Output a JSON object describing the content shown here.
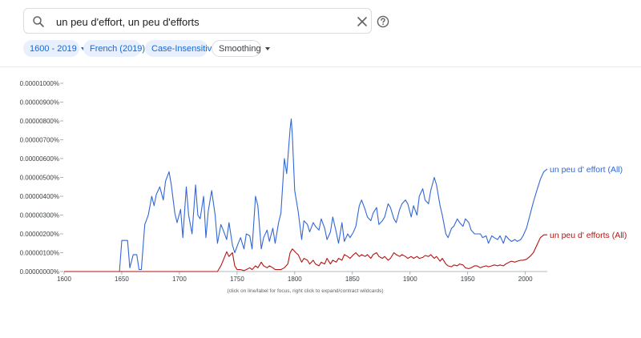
{
  "search": {
    "value": "un peu d'effort, un peu d'efforts",
    "placeholder": ""
  },
  "chips": {
    "year_range": "1600 - 2019",
    "corpus": "French (2019)",
    "case": "Case-Insensitive",
    "smoothing": "Smoothing"
  },
  "colors": {
    "accent_blue": "#3367d6",
    "accent_red": "#b31412",
    "chip_bg": "#e8f0fe"
  },
  "icons": [
    "search-icon",
    "close-icon",
    "help-icon",
    "chevron-down-icon"
  ],
  "hint": "(click on line/label for focus, right click to expand/contract wildcards)",
  "chart_data": {
    "type": "line",
    "xlim": [
      1600,
      2019
    ],
    "ylim": [
      0,
      1e-07
    ],
    "x_ticks": [
      "1600",
      "1650",
      "1700",
      "1750",
      "1800",
      "1850",
      "1900",
      "1950",
      "2000"
    ],
    "x_tick_values": [
      1600,
      1650,
      1700,
      1750,
      1800,
      1850,
      1900,
      1950,
      2000
    ],
    "y_ticks": [
      "0.00000000%",
      "0.00000100%",
      "0.00000200%",
      "0.00000300%",
      "0.00000400%",
      "0.00000500%",
      "0.00000600%",
      "0.00000700%",
      "0.00000800%",
      "0.00000900%",
      "0.00001000%"
    ],
    "y_tick_values": [
      0,
      1e-08,
      2e-08,
      3e-08,
      4e-08,
      5e-08,
      6e-08,
      7e-08,
      8e-08,
      9e-08,
      1e-07
    ],
    "series": [
      {
        "name": "un peu d' effort (All)",
        "color": "#3367d6",
        "points": [
          [
            1600,
            0
          ],
          [
            1648,
            0
          ],
          [
            1650,
            1.65e-08
          ],
          [
            1655,
            1.65e-08
          ],
          [
            1657,
            2e-09
          ],
          [
            1660,
            9e-09
          ],
          [
            1663,
            9e-09
          ],
          [
            1665,
            1e-09
          ],
          [
            1667,
            1e-09
          ],
          [
            1670,
            2.5e-08
          ],
          [
            1673,
            3e-08
          ],
          [
            1676,
            4e-08
          ],
          [
            1678,
            3.5e-08
          ],
          [
            1680,
            4.1e-08
          ],
          [
            1683,
            4.5e-08
          ],
          [
            1686,
            3.8e-08
          ],
          [
            1688,
            4.8e-08
          ],
          [
            1691,
            5.3e-08
          ],
          [
            1693,
            4.6e-08
          ],
          [
            1696,
            3.1e-08
          ],
          [
            1698,
            2.6e-08
          ],
          [
            1701,
            3.3e-08
          ],
          [
            1703,
            1.8e-08
          ],
          [
            1706,
            4.5e-08
          ],
          [
            1708,
            3e-08
          ],
          [
            1711,
            2e-08
          ],
          [
            1714,
            4.6e-08
          ],
          [
            1716,
            3e-08
          ],
          [
            1718,
            2.8e-08
          ],
          [
            1721,
            4e-08
          ],
          [
            1723,
            1.8e-08
          ],
          [
            1725,
            3.2e-08
          ],
          [
            1728,
            4.3e-08
          ],
          [
            1731,
            3e-08
          ],
          [
            1733,
            1.5e-08
          ],
          [
            1736,
            2.5e-08
          ],
          [
            1738,
            2.2e-08
          ],
          [
            1741,
            1.7e-08
          ],
          [
            1743,
            2.6e-08
          ],
          [
            1746,
            1.4e-08
          ],
          [
            1748,
            1e-08
          ],
          [
            1751,
            1.5e-08
          ],
          [
            1753,
            1.8e-08
          ],
          [
            1756,
            1.2e-08
          ],
          [
            1758,
            2e-08
          ],
          [
            1761,
            1.9e-08
          ],
          [
            1763,
            1.2e-08
          ],
          [
            1766,
            4e-08
          ],
          [
            1768,
            3.5e-08
          ],
          [
            1771,
            1.2e-08
          ],
          [
            1773,
            1.8e-08
          ],
          [
            1776,
            2.2e-08
          ],
          [
            1778,
            1.6e-08
          ],
          [
            1781,
            2.3e-08
          ],
          [
            1783,
            1.5e-08
          ],
          [
            1786,
            2.6e-08
          ],
          [
            1788,
            3.1e-08
          ],
          [
            1791,
            6e-08
          ],
          [
            1793,
            5.2e-08
          ],
          [
            1796,
            7.6e-08
          ],
          [
            1797,
            8.1e-08
          ],
          [
            1798,
            7.2e-08
          ],
          [
            1800,
            4.3e-08
          ],
          [
            1803,
            3.2e-08
          ],
          [
            1806,
            1.7e-08
          ],
          [
            1808,
            2.7e-08
          ],
          [
            1811,
            2.5e-08
          ],
          [
            1813,
            2.1e-08
          ],
          [
            1816,
            2.6e-08
          ],
          [
            1818,
            2.4e-08
          ],
          [
            1821,
            2.2e-08
          ],
          [
            1823,
            2.8e-08
          ],
          [
            1826,
            2.3e-08
          ],
          [
            1828,
            1.7e-08
          ],
          [
            1831,
            2.1e-08
          ],
          [
            1833,
            2.9e-08
          ],
          [
            1836,
            2.1e-08
          ],
          [
            1838,
            1.5e-08
          ],
          [
            1841,
            2.6e-08
          ],
          [
            1843,
            1.6e-08
          ],
          [
            1846,
            2e-08
          ],
          [
            1848,
            1.8e-08
          ],
          [
            1851,
            2.1e-08
          ],
          [
            1853,
            2.4e-08
          ],
          [
            1856,
            3.5e-08
          ],
          [
            1858,
            3.8e-08
          ],
          [
            1861,
            3.3e-08
          ],
          [
            1863,
            2.9e-08
          ],
          [
            1866,
            2.7e-08
          ],
          [
            1868,
            3.1e-08
          ],
          [
            1871,
            3.4e-08
          ],
          [
            1873,
            2.5e-08
          ],
          [
            1876,
            2.7e-08
          ],
          [
            1878,
            2.9e-08
          ],
          [
            1881,
            3.6e-08
          ],
          [
            1883,
            3.4e-08
          ],
          [
            1886,
            2.8e-08
          ],
          [
            1888,
            2.6e-08
          ],
          [
            1891,
            3.3e-08
          ],
          [
            1893,
            3.6e-08
          ],
          [
            1896,
            3.8e-08
          ],
          [
            1898,
            3.6e-08
          ],
          [
            1901,
            2.9e-08
          ],
          [
            1903,
            3.5e-08
          ],
          [
            1906,
            3e-08
          ],
          [
            1908,
            4e-08
          ],
          [
            1911,
            4.4e-08
          ],
          [
            1913,
            3.8e-08
          ],
          [
            1916,
            3.6e-08
          ],
          [
            1918,
            4.3e-08
          ],
          [
            1921,
            5e-08
          ],
          [
            1923,
            4.6e-08
          ],
          [
            1926,
            3.5e-08
          ],
          [
            1928,
            3e-08
          ],
          [
            1931,
            2e-08
          ],
          [
            1933,
            1.8e-08
          ],
          [
            1936,
            2.3e-08
          ],
          [
            1938,
            2.4e-08
          ],
          [
            1941,
            2.8e-08
          ],
          [
            1943,
            2.6e-08
          ],
          [
            1946,
            2.4e-08
          ],
          [
            1948,
            2.8e-08
          ],
          [
            1951,
            2.6e-08
          ],
          [
            1953,
            2.2e-08
          ],
          [
            1956,
            2e-08
          ],
          [
            1958,
            2e-08
          ],
          [
            1961,
            2e-08
          ],
          [
            1963,
            1.8e-08
          ],
          [
            1966,
            1.9e-08
          ],
          [
            1968,
            1.5e-08
          ],
          [
            1971,
            1.9e-08
          ],
          [
            1973,
            1.8e-08
          ],
          [
            1976,
            1.7e-08
          ],
          [
            1978,
            1.9e-08
          ],
          [
            1981,
            1.5e-08
          ],
          [
            1983,
            1.9e-08
          ],
          [
            1986,
            1.7e-08
          ],
          [
            1988,
            1.6e-08
          ],
          [
            1991,
            1.7e-08
          ],
          [
            1993,
            1.6e-08
          ],
          [
            1996,
            1.7e-08
          ],
          [
            1998,
            1.9e-08
          ],
          [
            2001,
            2.3e-08
          ],
          [
            2004,
            3e-08
          ],
          [
            2007,
            3.7e-08
          ],
          [
            2010,
            4.3e-08
          ],
          [
            2013,
            4.9e-08
          ],
          [
            2016,
            5.3e-08
          ],
          [
            2019,
            5.45e-08
          ]
        ]
      },
      {
        "name": "un peu d' efforts (All)",
        "color": "#b31412",
        "points": [
          [
            1600,
            0
          ],
          [
            1733,
            0
          ],
          [
            1736,
            3e-09
          ],
          [
            1738,
            6e-09
          ],
          [
            1741,
            1.05e-08
          ],
          [
            1743,
            8e-09
          ],
          [
            1746,
            1e-08
          ],
          [
            1748,
            3e-09
          ],
          [
            1750,
            1e-09
          ],
          [
            1753,
            1e-09
          ],
          [
            1756,
            5e-10
          ],
          [
            1758,
            1e-09
          ],
          [
            1761,
            2e-09
          ],
          [
            1763,
            1e-09
          ],
          [
            1766,
            3e-09
          ],
          [
            1768,
            2e-09
          ],
          [
            1771,
            5e-09
          ],
          [
            1773,
            3e-09
          ],
          [
            1776,
            2e-09
          ],
          [
            1778,
            3e-09
          ],
          [
            1781,
            2e-09
          ],
          [
            1783,
            1e-09
          ],
          [
            1786,
            1e-09
          ],
          [
            1788,
            1e-09
          ],
          [
            1791,
            2e-09
          ],
          [
            1794,
            4e-09
          ],
          [
            1796,
            1e-08
          ],
          [
            1798,
            1.2e-08
          ],
          [
            1801,
            1e-08
          ],
          [
            1803,
            9e-09
          ],
          [
            1806,
            5e-09
          ],
          [
            1808,
            7e-09
          ],
          [
            1811,
            6e-09
          ],
          [
            1813,
            4e-09
          ],
          [
            1816,
            6e-09
          ],
          [
            1818,
            4e-09
          ],
          [
            1821,
            3e-09
          ],
          [
            1823,
            5e-09
          ],
          [
            1826,
            4e-09
          ],
          [
            1828,
            7e-09
          ],
          [
            1831,
            4e-09
          ],
          [
            1833,
            6e-09
          ],
          [
            1836,
            5e-09
          ],
          [
            1838,
            7e-09
          ],
          [
            1841,
            6e-09
          ],
          [
            1843,
            9e-09
          ],
          [
            1846,
            8e-09
          ],
          [
            1848,
            7e-09
          ],
          [
            1851,
            9e-09
          ],
          [
            1853,
            1e-08
          ],
          [
            1856,
            8e-09
          ],
          [
            1858,
            9e-09
          ],
          [
            1861,
            8e-09
          ],
          [
            1863,
            9e-09
          ],
          [
            1866,
            7e-09
          ],
          [
            1868,
            9e-09
          ],
          [
            1871,
            1e-08
          ],
          [
            1873,
            8e-09
          ],
          [
            1876,
            7e-09
          ],
          [
            1878,
            8e-09
          ],
          [
            1881,
            6e-09
          ],
          [
            1883,
            7e-09
          ],
          [
            1886,
            1e-08
          ],
          [
            1888,
            9e-09
          ],
          [
            1891,
            8e-09
          ],
          [
            1893,
            9e-09
          ],
          [
            1896,
            8e-09
          ],
          [
            1898,
            7e-09
          ],
          [
            1901,
            8e-09
          ],
          [
            1903,
            7e-09
          ],
          [
            1906,
            8e-09
          ],
          [
            1908,
            7e-09
          ],
          [
            1911,
            7.5e-09
          ],
          [
            1913,
            8.5e-09
          ],
          [
            1916,
            8e-09
          ],
          [
            1918,
            9e-09
          ],
          [
            1921,
            7e-09
          ],
          [
            1923,
            8e-09
          ],
          [
            1926,
            5.5e-09
          ],
          [
            1928,
            7e-09
          ],
          [
            1931,
            4e-09
          ],
          [
            1933,
            3e-09
          ],
          [
            1936,
            2.5e-09
          ],
          [
            1938,
            3.5e-09
          ],
          [
            1941,
            3e-09
          ],
          [
            1943,
            4e-09
          ],
          [
            1946,
            3.5e-09
          ],
          [
            1948,
            2e-09
          ],
          [
            1951,
            1.5e-09
          ],
          [
            1953,
            2e-09
          ],
          [
            1956,
            3e-09
          ],
          [
            1958,
            3e-09
          ],
          [
            1961,
            2e-09
          ],
          [
            1963,
            2.5e-09
          ],
          [
            1966,
            3e-09
          ],
          [
            1968,
            2.5e-09
          ],
          [
            1971,
            3e-09
          ],
          [
            1973,
            3.5e-09
          ],
          [
            1976,
            3e-09
          ],
          [
            1978,
            3.5e-09
          ],
          [
            1981,
            3e-09
          ],
          [
            1983,
            4e-09
          ],
          [
            1986,
            5e-09
          ],
          [
            1988,
            5.5e-09
          ],
          [
            1991,
            5e-09
          ],
          [
            1993,
            5.5e-09
          ],
          [
            1996,
            6e-09
          ],
          [
            1998,
            6e-09
          ],
          [
            2001,
            6.5e-09
          ],
          [
            2004,
            8e-09
          ],
          [
            2007,
            1e-08
          ],
          [
            2010,
            1.4e-08
          ],
          [
            2013,
            1.8e-08
          ],
          [
            2016,
            1.95e-08
          ],
          [
            2019,
            1.95e-08
          ]
        ]
      }
    ],
    "grid": false,
    "legend": "right-of-line-ends"
  }
}
